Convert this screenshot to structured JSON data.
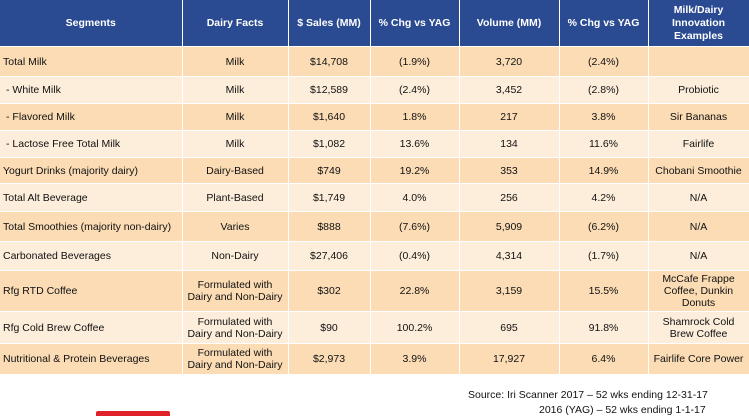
{
  "headers": [
    "Segments",
    "Dairy Facts",
    "$ Sales (MM)",
    "% Chg vs YAG",
    "Volume (MM)",
    "% Chg vs YAG",
    "Milk/Dairy Innovation Examples"
  ],
  "rows": [
    {
      "segment": "Total Milk",
      "facts": "Milk",
      "sales": "$14,708",
      "sales_chg": "(1.9%)",
      "volume": "3,720",
      "volume_chg": "(2.4%)",
      "example": ""
    },
    {
      "segment": "  - White Milk",
      "facts": "Milk",
      "sales": "$12,589",
      "sales_chg": "(2.4%)",
      "volume": "3,452",
      "volume_chg": "(2.8%)",
      "example": "Probiotic"
    },
    {
      "segment": "  - Flavored Milk",
      "facts": "Milk",
      "sales": "$1,640",
      "sales_chg": "1.8%",
      "volume": "217",
      "volume_chg": "3.8%",
      "example": "Sir Bananas"
    },
    {
      "segment": "  - Lactose Free Total Milk",
      "facts": "Milk",
      "sales": "$1,082",
      "sales_chg": "13.6%",
      "volume": "134",
      "volume_chg": "11.6%",
      "example": "Fairlife"
    },
    {
      "segment": "Yogurt Drinks (majority dairy)",
      "facts": "Dairy-Based",
      "sales": "$749",
      "sales_chg": "19.2%",
      "volume": "353",
      "volume_chg": "14.9%",
      "example": "Chobani Smoothie"
    },
    {
      "segment": "Total Alt Beverage",
      "facts": "Plant-Based",
      "sales": "$1,749",
      "sales_chg": "4.0%",
      "volume": "256",
      "volume_chg": "4.2%",
      "example": "N/A"
    },
    {
      "segment": "Total Smoothies (majority non-dairy)",
      "facts": "Varies",
      "sales": "$888",
      "sales_chg": "(7.6%)",
      "volume": "5,909",
      "volume_chg": "(6.2%)",
      "example": "N/A"
    },
    {
      "segment": "Carbonated Beverages",
      "facts": "Non-Dairy",
      "sales": "$27,406",
      "sales_chg": "(0.4%)",
      "volume": "4,314",
      "volume_chg": "(1.7%)",
      "example": "N/A"
    },
    {
      "segment": "Rfg RTD Coffee",
      "facts": "Formulated with Dairy and Non-Dairy",
      "sales": "$302",
      "sales_chg": "22.8%",
      "volume": "3,159",
      "volume_chg": "15.5%",
      "example": "McCafe Frappe Coffee, Dunkin Donuts"
    },
    {
      "segment": "Rfg Cold Brew Coffee",
      "facts": "Formulated with Dairy and Non-Dairy",
      "sales": "$90",
      "sales_chg": "100.2%",
      "volume": "695",
      "volume_chg": "91.8%",
      "example": "Shamrock Cold Brew Coffee"
    },
    {
      "segment": "Nutritional & Protein Beverages",
      "facts": "Formulated with Dairy and Non-Dairy",
      "sales": "$2,973",
      "sales_chg": "3.9%",
      "volume": "17,927",
      "volume_chg": "6.4%",
      "example": "Fairlife Core Power"
    }
  ],
  "source_line1": "Source:  Iri Scanner 2017 – 52 wks ending 12-31-17",
  "source_line2": "2016 (YAG) – 52 wks ending 1-1-17"
}
